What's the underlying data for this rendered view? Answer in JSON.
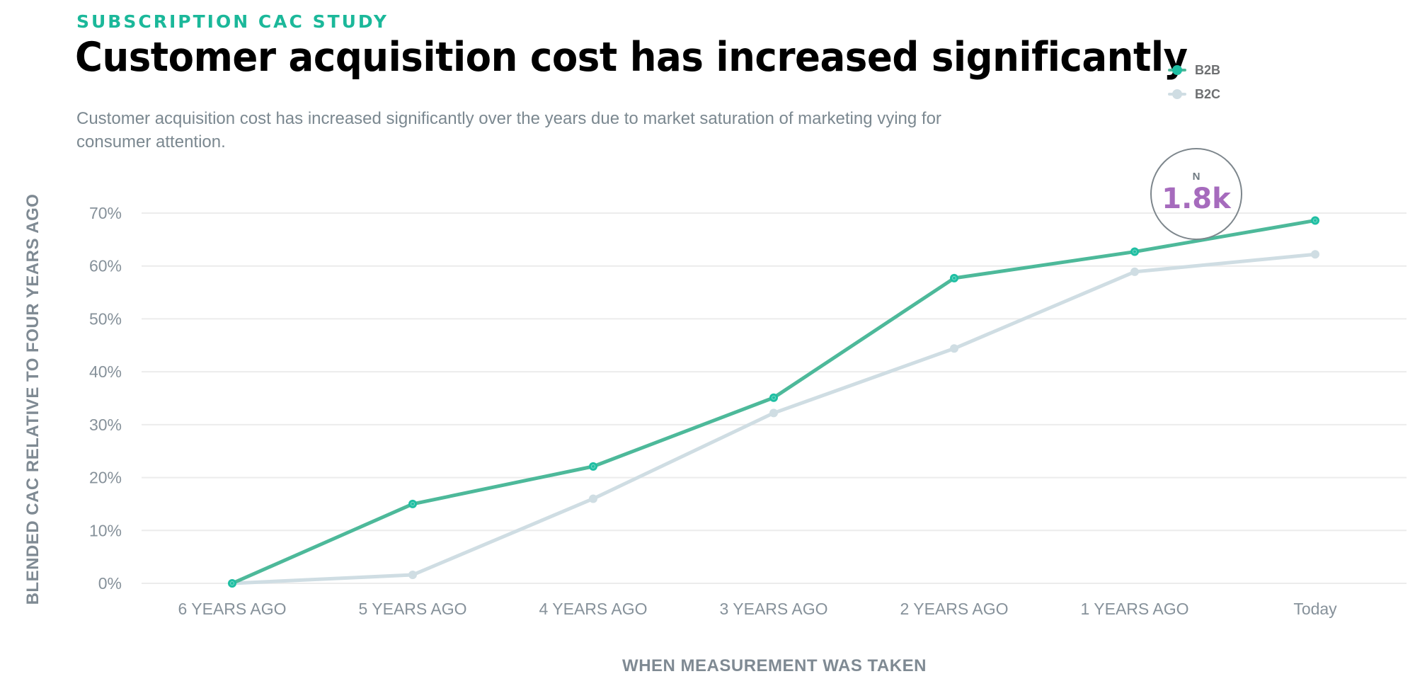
{
  "header": {
    "eyebrow": "SUBSCRIPTION CAC STUDY",
    "title": "Customer acquisition cost has increased significantly",
    "subtitle": "Customer acquisition cost has increased significantly over the years due to market saturation of marketing vying for consumer attention."
  },
  "legend": {
    "items": [
      {
        "label": "B2B",
        "color": "#1fbfa3"
      },
      {
        "label": "B2C",
        "color": "#cfdde3"
      }
    ]
  },
  "badge": {
    "label": "N",
    "value": "1.8k",
    "value_color": "#a66bbd"
  },
  "colors": {
    "b2b_line": "#4db99a",
    "b2b_point": "#1fbfa3",
    "b2c_line": "#cfdde3",
    "b2c_point": "#cfdde3",
    "grid": "#ececec"
  },
  "chart_data": {
    "type": "line",
    "title": "Customer acquisition cost has increased significantly",
    "subtitle": "Customer acquisition cost has increased significantly over the years due to market saturation of marketing vying for consumer attention.",
    "xlabel": "WHEN MEASUREMENT WAS TAKEN",
    "ylabel": "BLENDED CAC RELATIVE TO FOUR YEARS AGO",
    "categories": [
      "6 YEARS AGO",
      "5 YEARS AGO",
      "4 YEARS AGO",
      "3 YEARS AGO",
      "2 YEARS AGO",
      "1 YEARS AGO",
      "Today"
    ],
    "y_ticks": [
      0,
      10,
      20,
      30,
      40,
      50,
      60,
      70
    ],
    "y_tick_labels": [
      "0%",
      "10%",
      "20%",
      "30%",
      "40%",
      "50%",
      "60%",
      "70%"
    ],
    "ylim": [
      0,
      70
    ],
    "grid": true,
    "legend_position": "top-right",
    "series": [
      {
        "name": "B2B",
        "values": [
          0,
          15,
          22.1,
          35.1,
          57.7,
          62.7,
          68.6
        ]
      },
      {
        "name": "B2C",
        "values": [
          0,
          1.6,
          16,
          32.2,
          44.4,
          58.9,
          62.2
        ]
      }
    ],
    "annotations": [
      {
        "label": "N",
        "value": "1.8k"
      }
    ]
  }
}
